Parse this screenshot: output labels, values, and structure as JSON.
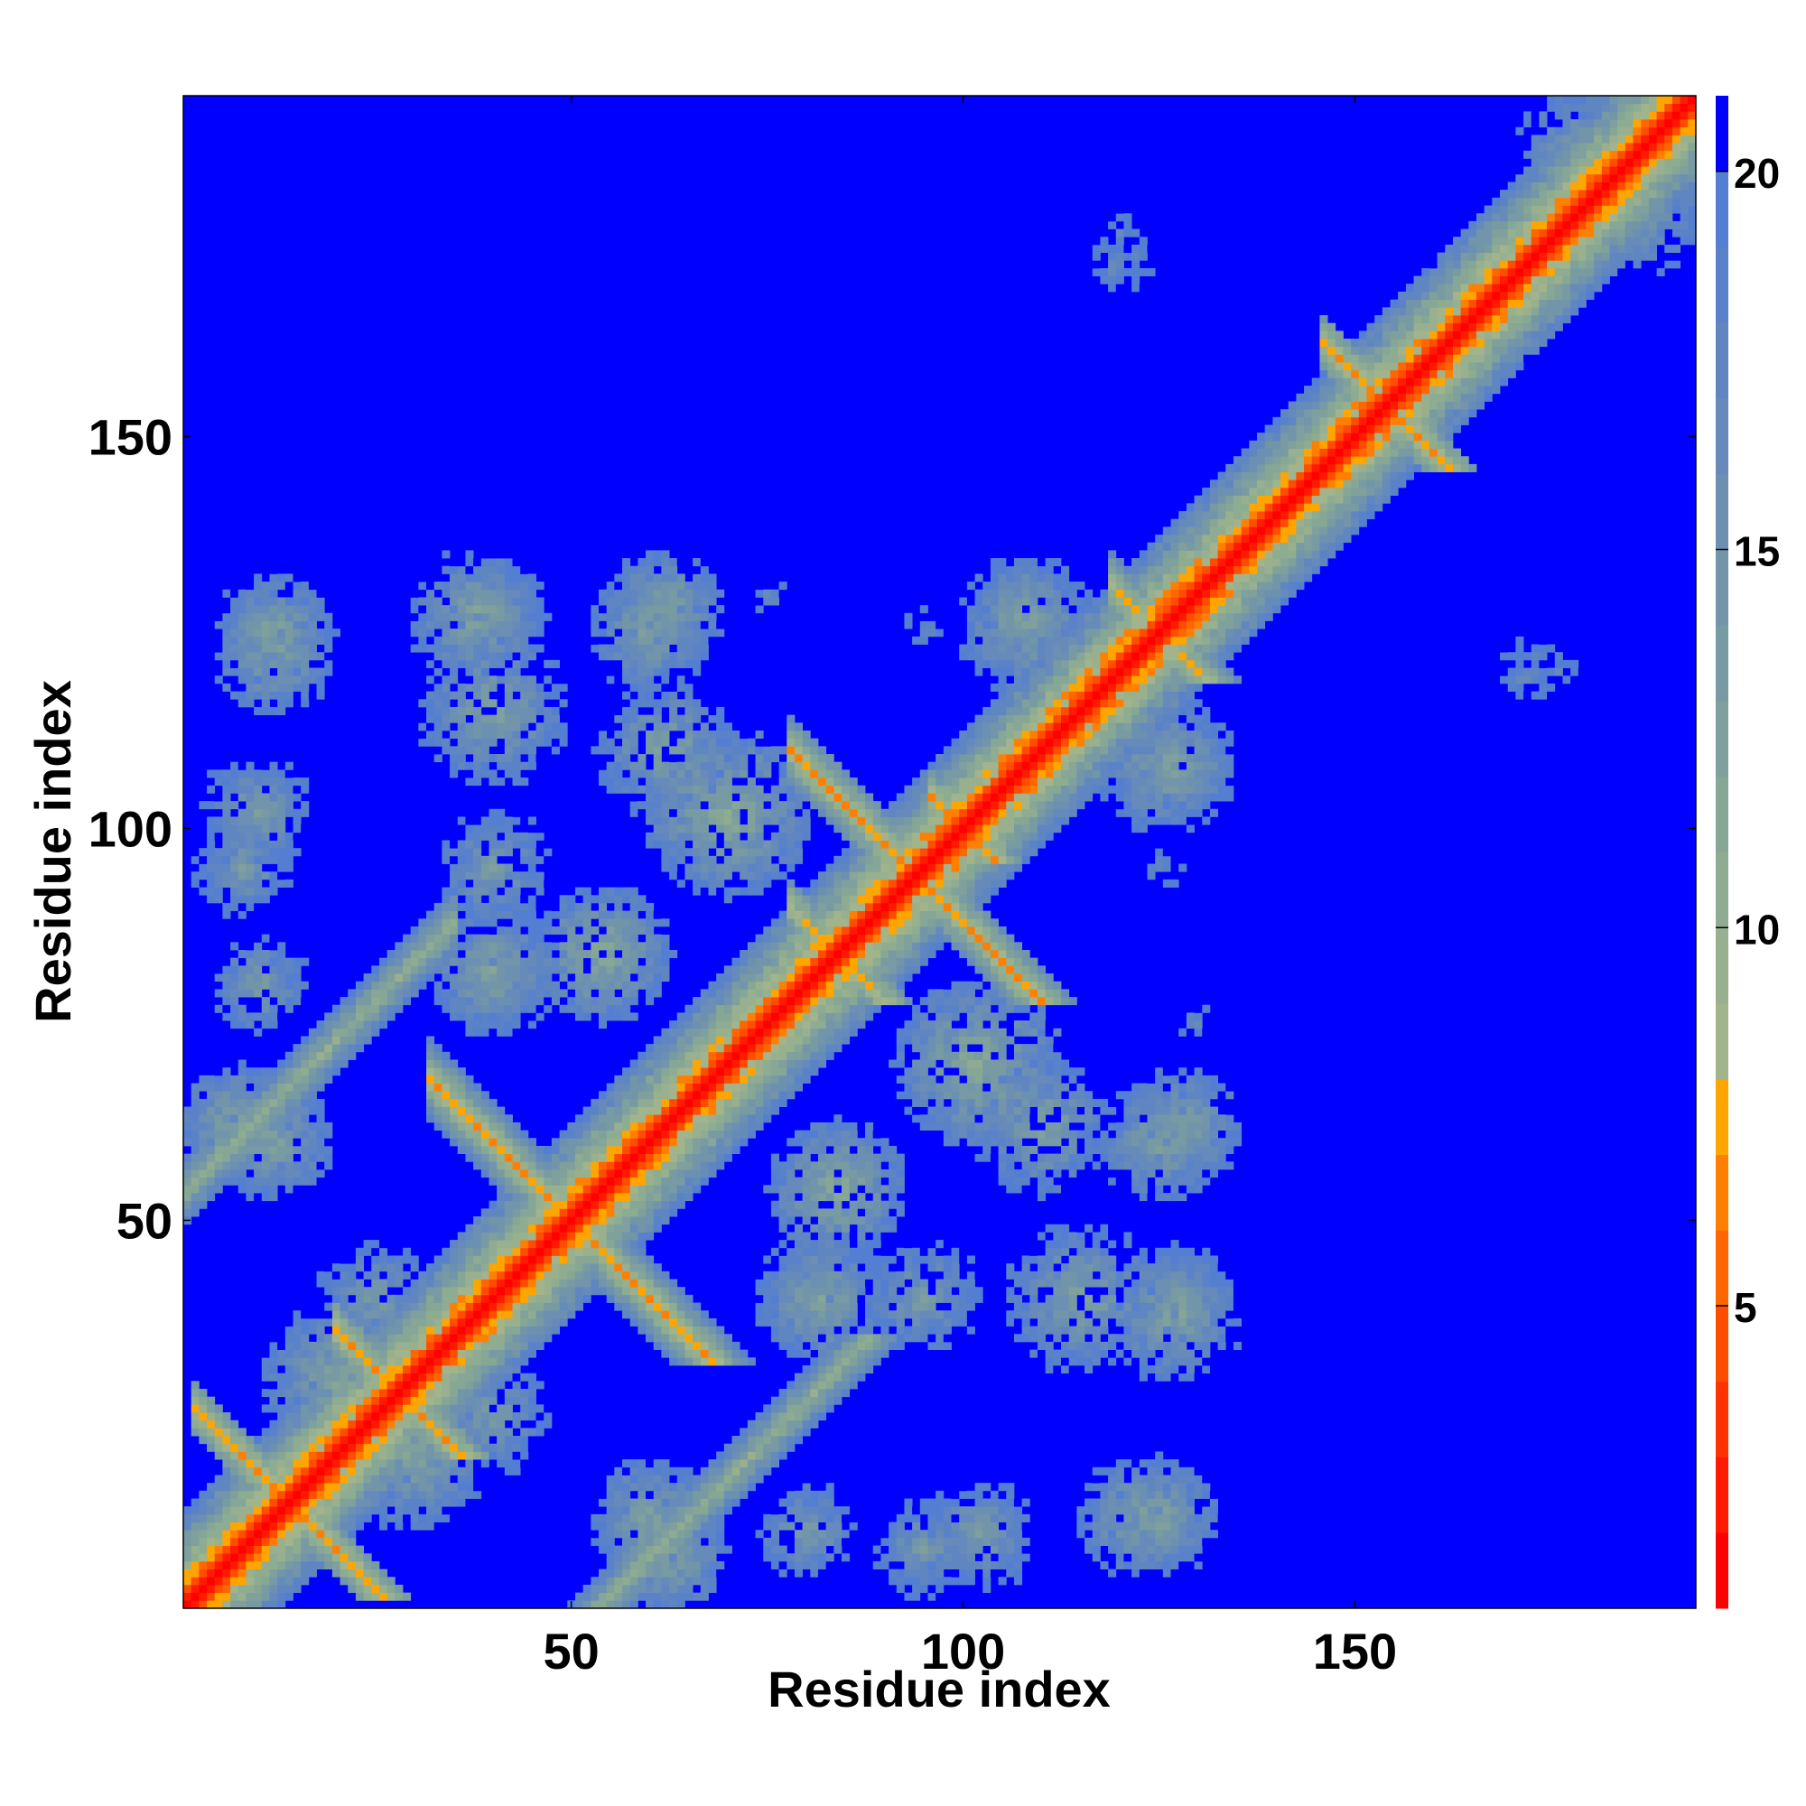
{
  "chart_data": {
    "type": "heatmap",
    "title": "",
    "xlabel": "Residue index",
    "ylabel": "Residue index",
    "n_residues": 193,
    "x_range": [
      0.5,
      193.5
    ],
    "y_range": [
      0.5,
      193.5
    ],
    "x_ticks": [
      50,
      100,
      150
    ],
    "y_ticks": [
      50,
      100,
      150
    ],
    "x_tick_labels": [
      "50",
      "100",
      "150"
    ],
    "y_tick_labels": [
      "50",
      "100",
      "150"
    ],
    "value_cap": 21,
    "background_color": "#0000ff",
    "colorbar": {
      "range": [
        1,
        21
      ],
      "ticks": [
        5,
        10,
        15,
        20
      ],
      "tick_labels": [
        "5",
        "10",
        "15",
        "20"
      ],
      "levels": [
        {
          "max": 2,
          "color": "#ff0000"
        },
        {
          "max": 3,
          "color": "#ff1a00"
        },
        {
          "max": 4,
          "color": "#ff3300"
        },
        {
          "max": 5,
          "color": "#ff4d00"
        },
        {
          "max": 6,
          "color": "#ff6600"
        },
        {
          "max": 7,
          "color": "#ff8000"
        },
        {
          "max": 8,
          "color": "#ffa500"
        },
        {
          "max": 9,
          "color": "#a2b48c"
        },
        {
          "max": 10,
          "color": "#98b08e"
        },
        {
          "max": 11,
          "color": "#8eac91"
        },
        {
          "max": 12,
          "color": "#86a696"
        },
        {
          "max": 13,
          "color": "#7fa09c"
        },
        {
          "max": 14,
          "color": "#789aa3"
        },
        {
          "max": 15,
          "color": "#7295aa"
        },
        {
          "max": 16,
          "color": "#6c90b2"
        },
        {
          "max": 17,
          "color": "#668bba"
        },
        {
          "max": 18,
          "color": "#6086c2"
        },
        {
          "max": 19,
          "color": "#5a82c9"
        },
        {
          "max": 20,
          "color": "#547ed1"
        },
        {
          "max": 21,
          "color": "#0000ff"
        }
      ]
    },
    "features": [
      {
        "kind": "diagonal",
        "from": 1,
        "to": 193,
        "value": 1.5
      },
      {
        "kind": "antiparallel",
        "center": [
          50,
          50
        ],
        "half_length": 18,
        "value": 6,
        "halo": 5
      },
      {
        "kind": "antiparallel",
        "center": [
          94,
          94
        ],
        "half_length": 16,
        "value": 6,
        "halo": 4
      },
      {
        "kind": "antiparallel",
        "center": [
          154,
          154
        ],
        "half_length": 8,
        "value": 6,
        "halo": 3
      },
      {
        "kind": "antiparallel",
        "center": [
          84,
          84
        ],
        "half_length": 6,
        "value": 7,
        "halo": 3
      },
      {
        "kind": "antiparallel",
        "center": [
          28,
          28
        ],
        "half_length": 8,
        "value": 6,
        "halo": 3
      },
      {
        "kind": "antiparallel",
        "center": [
          14,
          14
        ],
        "half_length": 12,
        "value": 6,
        "halo": 3
      },
      {
        "kind": "antiparallel",
        "center": [
          125,
          125
        ],
        "half_length": 6,
        "value": 7,
        "halo": 4
      },
      {
        "kind": "antiparallel",
        "center": [
          100,
          100
        ],
        "half_length": 4,
        "value": 6,
        "halo": 3
      },
      {
        "kind": "parallel",
        "offset": 53,
        "from": 1,
        "to": 35,
        "value": 9,
        "halo": 4
      },
      {
        "kind": "blob",
        "center": [
          12,
          125
        ],
        "radius": 8,
        "value": 11
      },
      {
        "kind": "blob",
        "center": [
          38,
          127
        ],
        "radius": 9,
        "value": 11
      },
      {
        "kind": "blob",
        "center": [
          60,
          125
        ],
        "radius": 8,
        "value": 11
      },
      {
        "kind": "blob",
        "center": [
          108,
          128
        ],
        "radius": 7,
        "value": 11
      },
      {
        "kind": "blob",
        "center": [
          126,
          108
        ],
        "radius": 9,
        "value": 11
      },
      {
        "kind": "blob",
        "center": [
          70,
          102
        ],
        "radius": 11,
        "value": 10
      },
      {
        "kind": "blob",
        "center": [
          40,
          82
        ],
        "radius": 9,
        "value": 11
      },
      {
        "kind": "blob",
        "center": [
          54,
          84
        ],
        "radius": 9,
        "value": 10
      },
      {
        "kind": "blob",
        "center": [
          110,
          62
        ],
        "radius": 9,
        "value": 11
      },
      {
        "kind": "blob",
        "center": [
          128,
          62
        ],
        "radius": 8,
        "value": 11
      },
      {
        "kind": "blob",
        "center": [
          8,
          62
        ],
        "radius": 8,
        "value": 10
      },
      {
        "kind": "blob",
        "center": [
          8,
          95
        ],
        "radius": 7,
        "value": 12
      },
      {
        "kind": "blob",
        "center": [
          115,
          40
        ],
        "radius": 10,
        "value": 11
      },
      {
        "kind": "blob",
        "center": [
          95,
          40
        ],
        "radius": 8,
        "value": 12
      },
      {
        "kind": "blob",
        "center": [
          128,
          40
        ],
        "radius": 7,
        "value": 12
      },
      {
        "kind": "blob",
        "center": [
          122,
          12
        ],
        "radius": 8,
        "value": 11
      },
      {
        "kind": "blob",
        "center": [
          102,
          10
        ],
        "radius": 8,
        "value": 12
      },
      {
        "kind": "blob",
        "center": [
          60,
          12
        ],
        "radius": 8,
        "value": 11
      },
      {
        "kind": "blob",
        "center": [
          80,
          10
        ],
        "radius": 7,
        "value": 12
      },
      {
        "kind": "blob",
        "center": [
          20,
          30
        ],
        "radius": 10,
        "value": 11
      },
      {
        "kind": "blob",
        "center": [
          40,
          25
        ],
        "radius": 8,
        "value": 12
      },
      {
        "kind": "blob",
        "center": [
          80,
          40
        ],
        "radius": 7,
        "value": 12
      },
      {
        "kind": "blob",
        "center": [
          180,
          185
        ],
        "radius": 10,
        "value": 11
      },
      {
        "kind": "blob",
        "center": [
          120,
          176
        ],
        "radius": 6,
        "value": 15
      },
      {
        "kind": "blob",
        "center": [
          172,
          120
        ],
        "radius": 7,
        "value": 15
      },
      {
        "kind": "blob",
        "center": [
          125,
          95
        ],
        "radius": 5,
        "value": 15
      },
      {
        "kind": "blob",
        "center": [
          130,
          75
        ],
        "radius": 4,
        "value": 15
      }
    ]
  }
}
